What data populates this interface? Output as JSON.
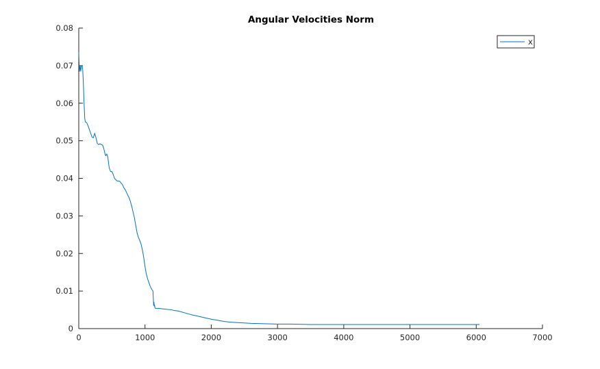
{
  "chart_data": {
    "type": "line",
    "title": "Angular Velocities Norm",
    "xlabel": "",
    "ylabel": "",
    "xlim": [
      0,
      7000
    ],
    "ylim": [
      0,
      0.08
    ],
    "xticks": [
      0,
      1000,
      2000,
      3000,
      4000,
      5000,
      6000,
      7000
    ],
    "xtick_labels": [
      "0",
      "1000",
      "2000",
      "3000",
      "4000",
      "5000",
      "6000",
      "7000"
    ],
    "yticks": [
      0,
      0.01,
      0.02,
      0.03,
      0.04,
      0.05,
      0.06,
      0.07,
      0.08
    ],
    "ytick_labels": [
      "0",
      "0.01",
      "0.02",
      "0.03",
      "0.04",
      "0.05",
      "0.06",
      "0.07",
      "0.08"
    ],
    "grid": false,
    "legend_position": "top-right",
    "series": [
      {
        "name": "x",
        "color": "#0072BD",
        "x": [
          0,
          10,
          20,
          30,
          40,
          50,
          60,
          70,
          80,
          90,
          100,
          120,
          140,
          160,
          180,
          200,
          220,
          240,
          260,
          280,
          300,
          320,
          340,
          360,
          380,
          400,
          410,
          420,
          430,
          440,
          450,
          460,
          480,
          500,
          520,
          540,
          560,
          580,
          600,
          620,
          640,
          660,
          680,
          700,
          720,
          740,
          760,
          780,
          800,
          820,
          840,
          860,
          880,
          900,
          920,
          940,
          960,
          980,
          1000,
          1020,
          1040,
          1060,
          1080,
          1100,
          1120,
          1130,
          1135,
          1140,
          1145,
          1150,
          1160,
          1200,
          1300,
          1400,
          1450,
          1500,
          1600,
          1700,
          1800,
          1900,
          2000,
          2100,
          2200,
          2300,
          2400,
          2500,
          2600,
          2800,
          3000,
          3200,
          3500,
          4000,
          4500,
          5000,
          5500,
          6000,
          6050
        ],
        "values": [
          0.0735,
          0.0685,
          0.07,
          0.0685,
          0.07,
          0.07,
          0.069,
          0.065,
          0.06,
          0.056,
          0.055,
          0.0548,
          0.054,
          0.053,
          0.052,
          0.051,
          0.0508,
          0.052,
          0.0508,
          0.0493,
          0.049,
          0.0492,
          0.049,
          0.0488,
          0.0478,
          0.0462,
          0.046,
          0.0465,
          0.0462,
          0.0455,
          0.044,
          0.0428,
          0.0418,
          0.0418,
          0.041,
          0.04,
          0.0396,
          0.0393,
          0.0393,
          0.0392,
          0.0387,
          0.0383,
          0.0375,
          0.037,
          0.0363,
          0.0355,
          0.0348,
          0.0338,
          0.0325,
          0.031,
          0.0295,
          0.0275,
          0.0255,
          0.0243,
          0.0235,
          0.0225,
          0.021,
          0.019,
          0.0165,
          0.0145,
          0.0132,
          0.0122,
          0.0112,
          0.0105,
          0.01,
          0.0062,
          0.007,
          0.006,
          0.0062,
          0.0055,
          0.0054,
          0.0054,
          0.0052,
          0.005,
          0.0048,
          0.0047,
          0.0042,
          0.0037,
          0.0033,
          0.0029,
          0.0025,
          0.0022,
          0.0019,
          0.0017,
          0.0016,
          0.0015,
          0.0014,
          0.0013,
          0.0012,
          0.0012,
          0.0011,
          0.0011,
          0.0011,
          0.0011,
          0.0011,
          0.0011,
          0.0011
        ]
      }
    ]
  }
}
